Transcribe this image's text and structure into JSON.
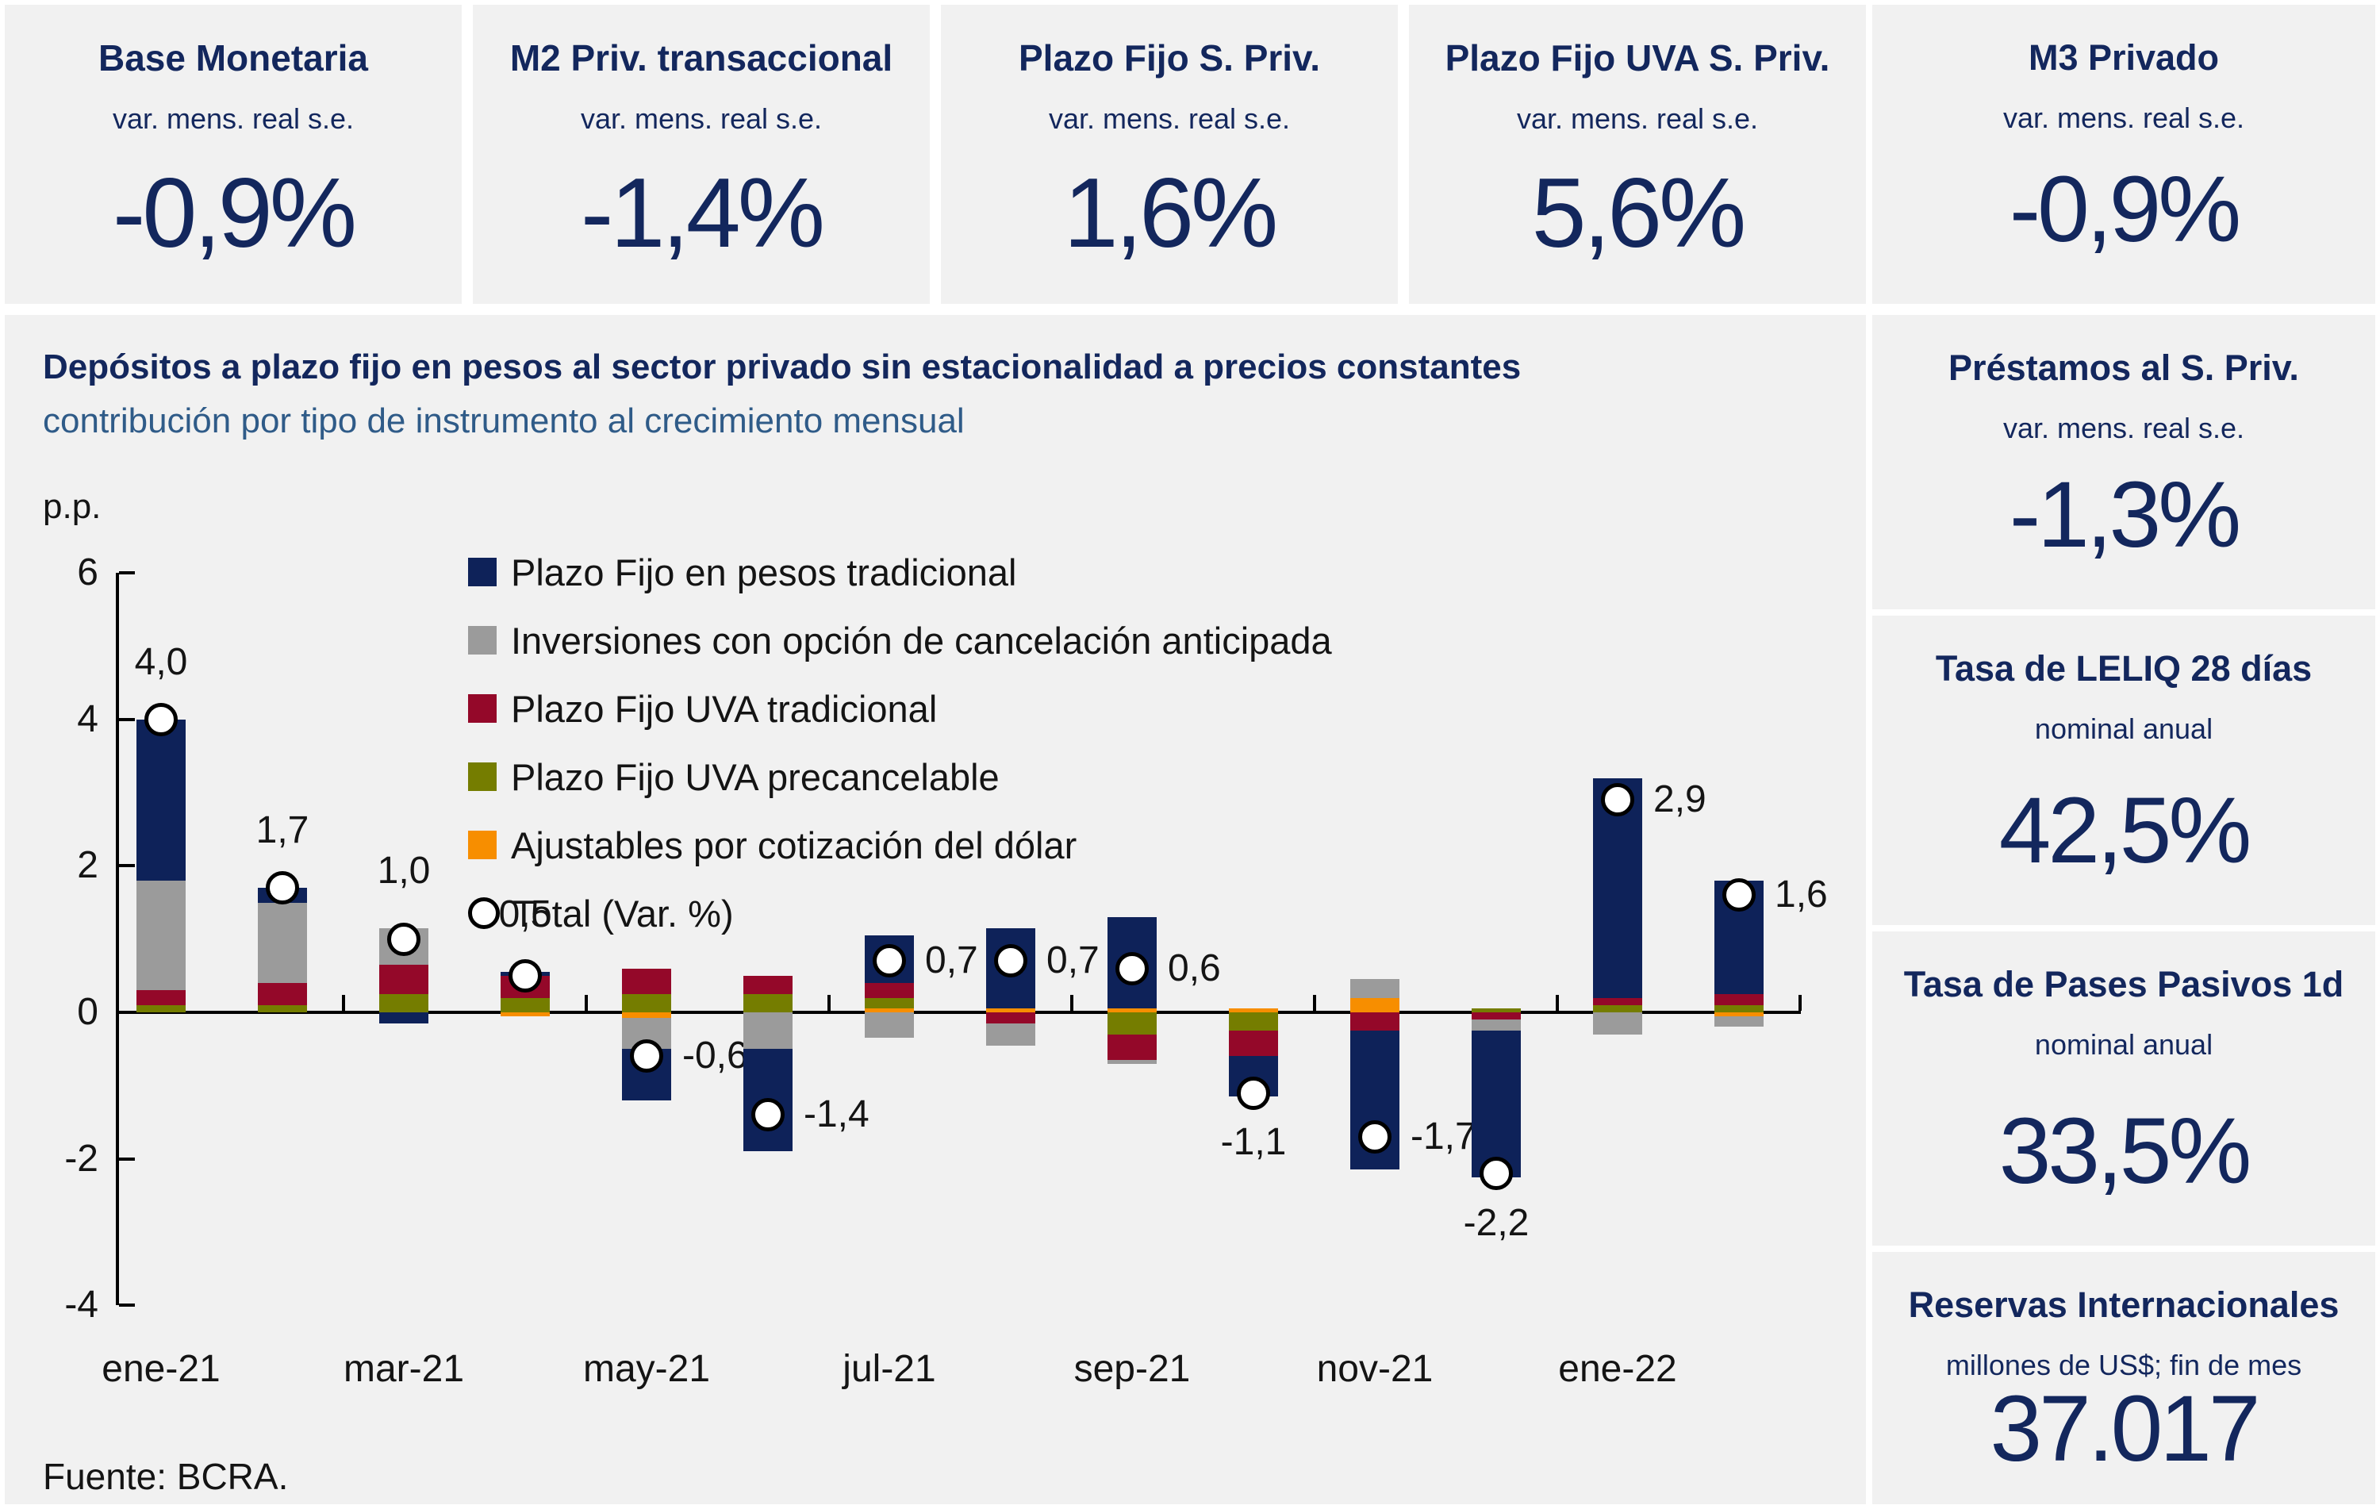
{
  "colors": {
    "panel_bg": "#f1f1f1",
    "accent_navy": "#13275d",
    "subtitle_blue": "#2f5b88",
    "marker_fill": "#ffffff",
    "marker_ring": "#000000"
  },
  "top_cards": [
    {
      "title": "Base Monetaria",
      "subtitle": "var. mens. real s.e.",
      "value": "-0,9%"
    },
    {
      "title": "M2 Priv. transaccional",
      "subtitle": "var. mens. real s.e.",
      "value": "-1,4%"
    },
    {
      "title": "Plazo Fijo S. Priv.",
      "subtitle": "var. mens. real s.e.",
      "value": "1,6%"
    },
    {
      "title": "Plazo Fijo UVA S. Priv.",
      "subtitle": "var. mens. real s.e.",
      "value": "5,6%"
    },
    {
      "title": "M3 Privado",
      "subtitle": "var. mens. real s.e.",
      "value": "-0,9%"
    }
  ],
  "sidebar_cards": [
    {
      "title": "Préstamos al S. Priv.",
      "subtitle": "var. mens. real s.e.",
      "value": "-1,3%"
    },
    {
      "title": "Tasa de LELIQ 28 días",
      "subtitle": "nominal anual",
      "value": "42,5%"
    },
    {
      "title": "Tasa de Pases Pasivos 1d",
      "subtitle": "nominal anual",
      "value": "33,5%"
    },
    {
      "title": "Reservas Internacionales",
      "subtitle": "millones de US$; fin de mes",
      "value": "37.017"
    }
  ],
  "chart_header": {
    "title": "Depósitos a plazo fijo en pesos al sector privado sin estacionalidad a precios constantes",
    "subtitle": "contribución por tipo de instrumento al crecimiento mensual",
    "unit_label": "p.p.",
    "source": "Fuente: BCRA."
  },
  "chart_data": {
    "type": "bar",
    "stacked": true,
    "ylabel": "p.p.",
    "ylim": [
      -4,
      6
    ],
    "y_ticks": [
      6,
      4,
      2,
      0,
      -2,
      -4
    ],
    "grid": false,
    "legend_position": "upper-center-inside",
    "categories": [
      "ene-21",
      "feb-21",
      "mar-21",
      "abr-21",
      "may-21",
      "jun-21",
      "jul-21",
      "ago-21",
      "sep-21",
      "oct-21",
      "nov-21",
      "dic-21",
      "ene-22",
      "feb-22"
    ],
    "x_axis_labels": [
      "ene-21",
      "mar-21",
      "may-21",
      "jul-21",
      "sep-21",
      "nov-21",
      "ene-22"
    ],
    "series": [
      {
        "name": "Plazo Fijo en pesos tradicional",
        "color": "#0e2259",
        "values": [
          2.2,
          0.2,
          -0.15,
          0.05,
          -0.7,
          -1.4,
          0.65,
          1.1,
          1.25,
          -0.55,
          -1.9,
          -2.0,
          3.0,
          1.55
        ]
      },
      {
        "name": "Inversiones con opción de cancelación anticipada",
        "color": "#9b9b9b",
        "values": [
          1.5,
          1.1,
          0.5,
          0.0,
          -0.42,
          -0.5,
          -0.35,
          -0.3,
          -0.05,
          0.0,
          0.25,
          -0.15,
          -0.3,
          -0.15
        ]
      },
      {
        "name": "Plazo Fijo UVA tradicional",
        "color": "#940829",
        "values": [
          0.2,
          0.3,
          0.4,
          0.3,
          0.35,
          0.25,
          0.2,
          -0.15,
          -0.35,
          -0.35,
          -0.25,
          -0.1,
          0.1,
          0.15
        ]
      },
      {
        "name": "Plazo Fijo UVA precancelable",
        "color": "#757d00",
        "values": [
          0.1,
          0.1,
          0.25,
          0.2,
          0.25,
          0.25,
          0.15,
          0.0,
          -0.3,
          -0.25,
          0.0,
          0.05,
          0.1,
          0.1
        ]
      },
      {
        "name": "Ajustables por cotización del dólar",
        "color": "#f78e00",
        "values": [
          0.0,
          0.0,
          0.0,
          -0.05,
          -0.08,
          0.0,
          0.05,
          0.05,
          0.05,
          0.05,
          0.2,
          0.0,
          0.0,
          -0.05
        ]
      }
    ],
    "totals": {
      "name": "Total (Var. %)",
      "values": [
        4.0,
        1.7,
        1.0,
        0.5,
        -0.6,
        -1.4,
        0.7,
        0.7,
        0.6,
        -1.1,
        -1.7,
        -2.2,
        2.9,
        1.6
      ],
      "labels": [
        "4,0",
        "1,7",
        "1,0",
        "0,5",
        "-0,6",
        "-1,4",
        "0,7",
        "0,7",
        "0,6",
        "-1,1",
        "-1,7",
        "-2,2",
        "2,9",
        "1,6"
      ],
      "label_pos": [
        "above",
        "above",
        "above",
        "above",
        "right",
        "right",
        "right",
        "right",
        "right",
        "below",
        "right",
        "below",
        "right",
        "right"
      ]
    }
  }
}
